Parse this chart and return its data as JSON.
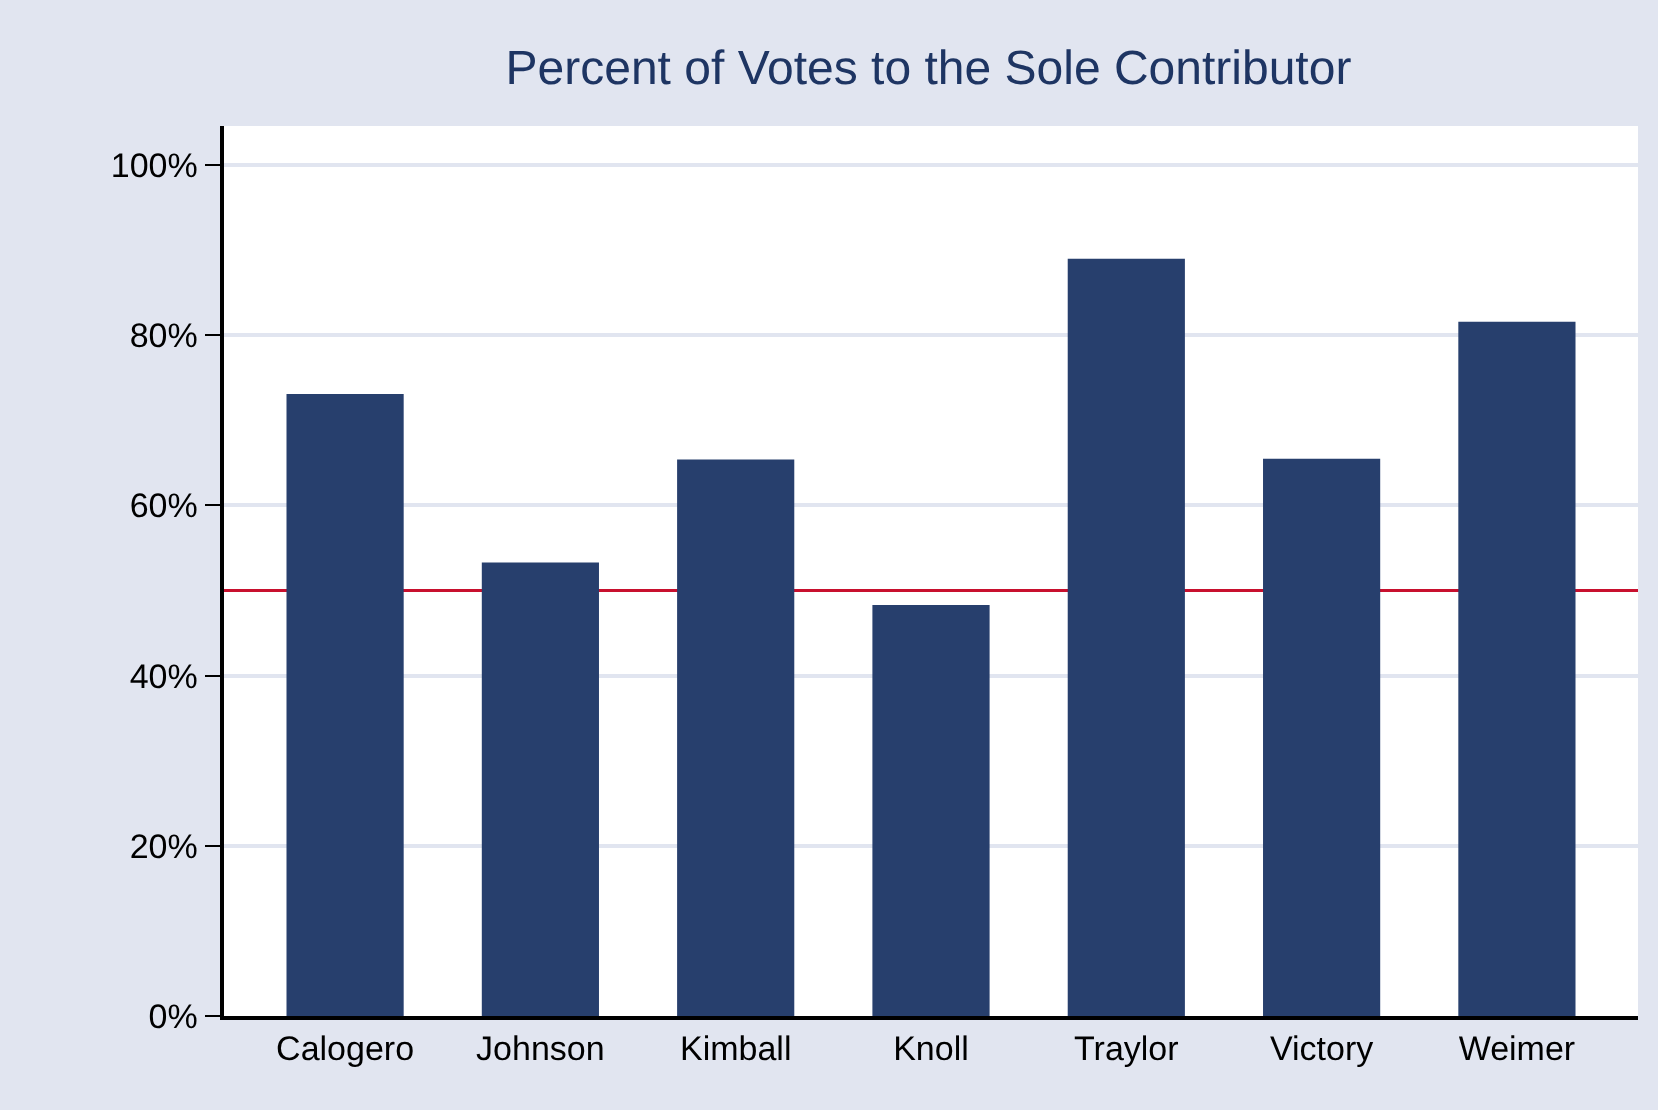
{
  "chart_data": {
    "type": "bar",
    "title": "Percent of Votes to the Sole Contributor",
    "categories": [
      "Calogero",
      "Johnson",
      "Kimball",
      "Knoll",
      "Traylor",
      "Victory",
      "Weimer"
    ],
    "values": [
      73.1,
      53.3,
      65.4,
      48.3,
      89.0,
      65.5,
      81.6
    ],
    "color": "#273f6d",
    "ylim": [
      0,
      104.6
    ],
    "yticks": [
      {
        "value": 0,
        "label": "0%"
      },
      {
        "value": 20,
        "label": "20%"
      },
      {
        "value": 40,
        "label": "40%"
      },
      {
        "value": 60,
        "label": "60%"
      },
      {
        "value": 80,
        "label": "80%"
      },
      {
        "value": 100,
        "label": "100%"
      }
    ],
    "grid": "y",
    "ref_lines": [
      {
        "axis": "y",
        "value": 50,
        "color": "#c8102e"
      }
    ]
  }
}
